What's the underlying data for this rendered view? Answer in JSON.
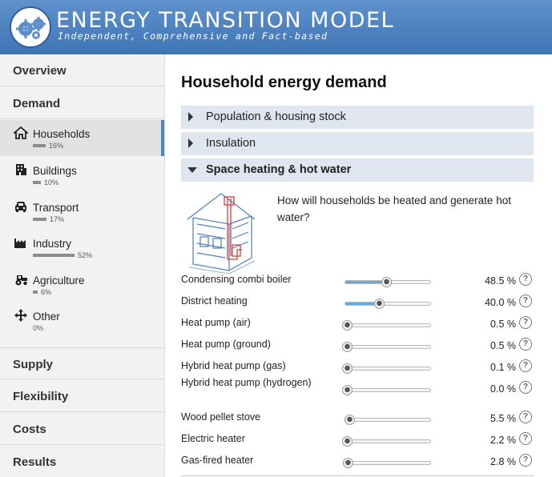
{
  "header": {
    "title": "ENERGY TRANSITION MODEL",
    "subtitle": "Independent, Comprehensive and Fact-based"
  },
  "sidebar": {
    "sections": {
      "overview": "Overview",
      "demand": "Demand",
      "supply": "Supply",
      "flexibility": "Flexibility",
      "costs": "Costs",
      "results": "Results"
    },
    "demand_items": [
      {
        "label": "Households",
        "percent": "16%",
        "share": 0.16,
        "icon": "house-icon"
      },
      {
        "label": "Buildings",
        "percent": "10%",
        "share": 0.1,
        "icon": "building-icon"
      },
      {
        "label": "Transport",
        "percent": "17%",
        "share": 0.17,
        "icon": "car-icon"
      },
      {
        "label": "Industry",
        "percent": "52%",
        "share": 0.52,
        "icon": "factory-icon"
      },
      {
        "label": "Agriculture",
        "percent": "6%",
        "share": 0.06,
        "icon": "tractor-icon"
      },
      {
        "label": "Other",
        "percent": "0%",
        "share": 0.0,
        "icon": "move-arrows-icon"
      }
    ],
    "active_item": "Households"
  },
  "main": {
    "title": "Household energy demand",
    "accordion": [
      {
        "label": "Population & housing stock",
        "open": false
      },
      {
        "label": "Insulation",
        "open": false
      },
      {
        "label": "Space heating & hot water",
        "open": true
      }
    ],
    "question": "How will households be heated and generate hot water?",
    "sliders": [
      {
        "name": "Condensing combi boiler",
        "value": "48.5 %",
        "fraction": 0.485
      },
      {
        "name": "District heating",
        "value": "40.0 %",
        "fraction": 0.4
      },
      {
        "name": "Heat pump (air)",
        "value": "0.5 %",
        "fraction": 0.005
      },
      {
        "name": "Heat pump (ground)",
        "value": "0.5 %",
        "fraction": 0.005
      },
      {
        "name": "Hybrid heat pump (gas)",
        "value": "0.1 %",
        "fraction": 0.001
      },
      {
        "name": "Hybrid heat pump (hydrogen)",
        "value": "0.0 %",
        "fraction": 0.0
      },
      {
        "name": "Wood pellet stove",
        "value": "5.5 %",
        "fraction": 0.055
      },
      {
        "name": "Electric heater",
        "value": "2.2 %",
        "fraction": 0.022
      },
      {
        "name": "Gas-fired heater",
        "value": "2.8 %",
        "fraction": 0.028
      }
    ],
    "help_label": "?"
  },
  "colors": {
    "header": "#4a7fbf",
    "slider_fill": "#6aa8dc",
    "active_indicator": "#4a84c4",
    "accordion_bg": "#dfe6ef"
  }
}
